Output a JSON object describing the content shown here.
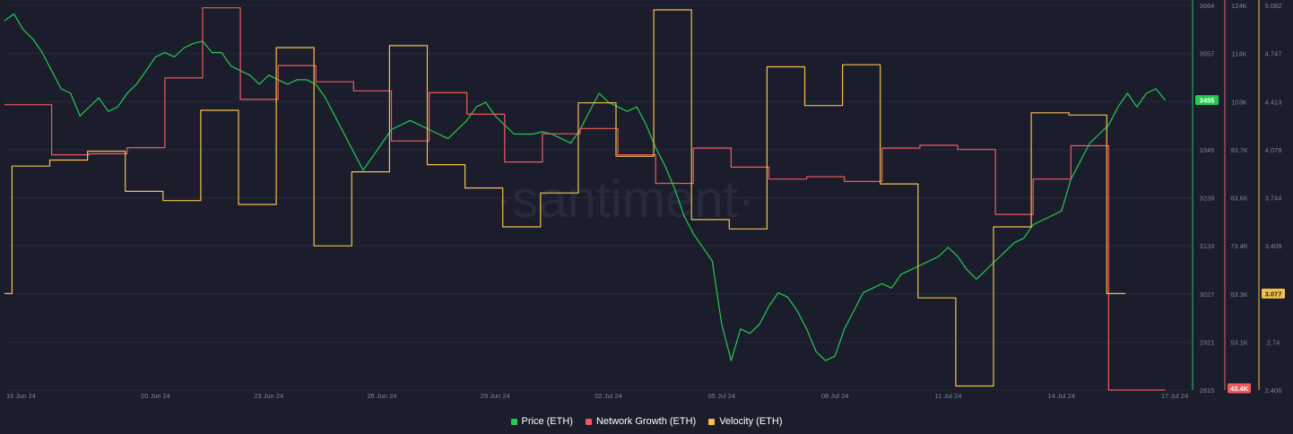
{
  "chart_data": {
    "type": "line",
    "title": "",
    "watermark": "·santiment·",
    "grid": true,
    "legend_position": "bottom-center",
    "x_ticks": [
      "16 Jun 24",
      "20 Jun 24",
      "23 Jun 24",
      "26 Jun 24",
      "29 Jun 24",
      "02 Jul 24",
      "05 Jul 24",
      "08 Jul 24",
      "11 Jul 24",
      "14 Jul 24",
      "17 Jul 24"
    ],
    "x_tick_days": [
      0,
      4,
      7,
      10,
      13,
      16,
      19,
      22,
      25,
      28,
      31
    ],
    "axes": {
      "price": {
        "ticks": [
          "3664",
          "3557",
          "3455",
          "3345",
          "3239",
          "3133",
          "3027",
          "2921",
          "2815"
        ],
        "min": 2815,
        "max": 3664,
        "current": "3455"
      },
      "network_growth": {
        "ticks": [
          "124K",
          "114K",
          "103K",
          "93.7K",
          "83.6K",
          "73.4K",
          "63.3K",
          "53.1K",
          "43.4K"
        ],
        "min": 43400,
        "max": 124000,
        "current": "43.4K"
      },
      "velocity": {
        "ticks": [
          "5.082",
          "4.747",
          "4.413",
          "4.078",
          "3.744",
          "3.409",
          "3.077",
          "2.74",
          "2.406"
        ],
        "min": 2.406,
        "max": 5.082,
        "current": "3.077"
      }
    },
    "series": [
      {
        "name": "Price (ETH)",
        "color": "#26c953",
        "axis": "price",
        "points": [
          [
            0,
            3630
          ],
          [
            0.25,
            3645
          ],
          [
            0.5,
            3610
          ],
          [
            0.75,
            3590
          ],
          [
            1,
            3560
          ],
          [
            1.25,
            3520
          ],
          [
            1.5,
            3480
          ],
          [
            1.75,
            3470
          ],
          [
            2,
            3420
          ],
          [
            2.25,
            3440
          ],
          [
            2.5,
            3460
          ],
          [
            2.75,
            3430
          ],
          [
            3,
            3440
          ],
          [
            3.25,
            3470
          ],
          [
            3.5,
            3490
          ],
          [
            3.75,
            3520
          ],
          [
            4,
            3550
          ],
          [
            4.25,
            3560
          ],
          [
            4.5,
            3550
          ],
          [
            4.75,
            3570
          ],
          [
            5,
            3580
          ],
          [
            5.25,
            3585
          ],
          [
            5.5,
            3560
          ],
          [
            5.75,
            3560
          ],
          [
            6,
            3530
          ],
          [
            6.25,
            3520
          ],
          [
            6.5,
            3510
          ],
          [
            6.75,
            3490
          ],
          [
            7,
            3510
          ],
          [
            7.25,
            3500
          ],
          [
            7.5,
            3490
          ],
          [
            7.75,
            3500
          ],
          [
            8,
            3500
          ],
          [
            8.25,
            3490
          ],
          [
            8.5,
            3460
          ],
          [
            8.75,
            3420
          ],
          [
            9,
            3380
          ],
          [
            9.25,
            3340
          ],
          [
            9.5,
            3300
          ],
          [
            9.75,
            3330
          ],
          [
            10,
            3360
          ],
          [
            10.25,
            3390
          ],
          [
            10.5,
            3400
          ],
          [
            10.75,
            3410
          ],
          [
            11,
            3400
          ],
          [
            11.25,
            3390
          ],
          [
            11.5,
            3380
          ],
          [
            11.75,
            3370
          ],
          [
            12,
            3390
          ],
          [
            12.25,
            3410
          ],
          [
            12.5,
            3440
          ],
          [
            12.75,
            3450
          ],
          [
            13,
            3420
          ],
          [
            13.25,
            3400
          ],
          [
            13.5,
            3380
          ],
          [
            13.75,
            3380
          ],
          [
            14,
            3380
          ],
          [
            14.25,
            3385
          ],
          [
            14.5,
            3380
          ],
          [
            14.75,
            3370
          ],
          [
            15,
            3360
          ],
          [
            15.25,
            3390
          ],
          [
            15.5,
            3430
          ],
          [
            15.75,
            3470
          ],
          [
            16,
            3450
          ],
          [
            16.25,
            3440
          ],
          [
            16.5,
            3430
          ],
          [
            16.75,
            3440
          ],
          [
            17,
            3400
          ],
          [
            17.25,
            3350
          ],
          [
            17.5,
            3310
          ],
          [
            17.75,
            3260
          ],
          [
            18,
            3200
          ],
          [
            18.25,
            3160
          ],
          [
            18.5,
            3130
          ],
          [
            18.75,
            3100
          ],
          [
            19,
            2960
          ],
          [
            19.25,
            2880
          ],
          [
            19.5,
            2950
          ],
          [
            19.75,
            2940
          ],
          [
            20,
            2960
          ],
          [
            20.25,
            3000
          ],
          [
            20.5,
            3030
          ],
          [
            20.75,
            3020
          ],
          [
            21,
            2990
          ],
          [
            21.25,
            2950
          ],
          [
            21.5,
            2900
          ],
          [
            21.75,
            2880
          ],
          [
            22,
            2890
          ],
          [
            22.25,
            2950
          ],
          [
            22.5,
            2990
          ],
          [
            22.75,
            3030
          ],
          [
            23,
            3040
          ],
          [
            23.25,
            3050
          ],
          [
            23.5,
            3040
          ],
          [
            23.75,
            3070
          ],
          [
            24,
            3080
          ],
          [
            24.25,
            3090
          ],
          [
            24.5,
            3100
          ],
          [
            24.75,
            3110
          ],
          [
            25,
            3130
          ],
          [
            25.25,
            3110
          ],
          [
            25.5,
            3080
          ],
          [
            25.75,
            3060
          ],
          [
            26,
            3080
          ],
          [
            26.25,
            3100
          ],
          [
            26.5,
            3120
          ],
          [
            26.75,
            3140
          ],
          [
            27,
            3150
          ],
          [
            27.25,
            3180
          ],
          [
            27.5,
            3190
          ],
          [
            27.75,
            3200
          ],
          [
            28,
            3210
          ],
          [
            28.25,
            3280
          ],
          [
            28.5,
            3320
          ],
          [
            28.75,
            3360
          ],
          [
            29,
            3380
          ],
          [
            29.25,
            3400
          ],
          [
            29.5,
            3440
          ],
          [
            29.75,
            3470
          ],
          [
            30,
            3440
          ],
          [
            30.25,
            3470
          ],
          [
            30.5,
            3480
          ],
          [
            30.75,
            3455
          ]
        ]
      },
      {
        "name": "Network Growth (ETH)",
        "color": "#ef5a5f",
        "axis": "network_growth",
        "points": [
          [
            0,
            103200
          ],
          [
            1.25,
            103200
          ],
          [
            1.25,
            92700
          ],
          [
            2.25,
            92700
          ],
          [
            2.25,
            92900
          ],
          [
            3.25,
            92900
          ],
          [
            3.25,
            94200
          ],
          [
            4.25,
            94200
          ],
          [
            4.25,
            108800
          ],
          [
            5.25,
            108800
          ],
          [
            5.25,
            123500
          ],
          [
            6.25,
            123500
          ],
          [
            6.25,
            104300
          ],
          [
            7.25,
            104300
          ],
          [
            7.25,
            111400
          ],
          [
            8.25,
            111400
          ],
          [
            8.25,
            108000
          ],
          [
            9.25,
            108000
          ],
          [
            9.25,
            106100
          ],
          [
            10.25,
            106100
          ],
          [
            10.25,
            95600
          ],
          [
            11.25,
            95600
          ],
          [
            11.25,
            105700
          ],
          [
            12.25,
            105700
          ],
          [
            12.25,
            101200
          ],
          [
            13.25,
            101200
          ],
          [
            13.25,
            91200
          ],
          [
            14.25,
            91200
          ],
          [
            14.25,
            97100
          ],
          [
            15.25,
            97100
          ],
          [
            15.25,
            98200
          ],
          [
            16.25,
            98200
          ],
          [
            16.25,
            92700
          ],
          [
            17.25,
            92700
          ],
          [
            17.25,
            86700
          ],
          [
            18.25,
            86700
          ],
          [
            18.25,
            94100
          ],
          [
            19.25,
            94100
          ],
          [
            19.25,
            90100
          ],
          [
            20.25,
            90100
          ],
          [
            20.25,
            87600
          ],
          [
            21.25,
            87600
          ],
          [
            21.25,
            88100
          ],
          [
            22.25,
            88100
          ],
          [
            22.25,
            87100
          ],
          [
            23.25,
            87100
          ],
          [
            23.25,
            94100
          ],
          [
            24.25,
            94100
          ],
          [
            24.25,
            94700
          ],
          [
            25.25,
            94700
          ],
          [
            25.25,
            93800
          ],
          [
            26.25,
            93800
          ],
          [
            26.25,
            80200
          ],
          [
            27.25,
            80200
          ],
          [
            27.25,
            87600
          ],
          [
            28.25,
            87600
          ],
          [
            28.25,
            94600
          ],
          [
            29.25,
            94600
          ],
          [
            29.25,
            43400
          ],
          [
            30.75,
            43400
          ]
        ]
      },
      {
        "name": "Velocity (ETH)",
        "color": "#f4c04c",
        "axis": "velocity",
        "points": [
          [
            0,
            3.077
          ],
          [
            0.2,
            3.077
          ],
          [
            0.2,
            3.964
          ],
          [
            1.2,
            3.964
          ],
          [
            1.2,
            4.006
          ],
          [
            2.2,
            4.006
          ],
          [
            2.2,
            4.068
          ],
          [
            3.2,
            4.068
          ],
          [
            3.2,
            3.788
          ],
          [
            4.2,
            3.788
          ],
          [
            4.2,
            3.724
          ],
          [
            5.2,
            3.724
          ],
          [
            5.2,
            4.352
          ],
          [
            6.2,
            4.352
          ],
          [
            6.2,
            3.697
          ],
          [
            7.2,
            3.697
          ],
          [
            7.2,
            4.788
          ],
          [
            8.2,
            4.788
          ],
          [
            8.2,
            3.409
          ],
          [
            9.2,
            3.409
          ],
          [
            9.2,
            3.924
          ],
          [
            10.2,
            3.924
          ],
          [
            10.2,
            4.802
          ],
          [
            11.2,
            4.802
          ],
          [
            11.2,
            3.974
          ],
          [
            12.2,
            3.974
          ],
          [
            12.2,
            3.812
          ],
          [
            13.2,
            3.812
          ],
          [
            13.2,
            3.541
          ],
          [
            14.2,
            3.541
          ],
          [
            14.2,
            3.777
          ],
          [
            15.2,
            3.777
          ],
          [
            15.2,
            4.404
          ],
          [
            16.2,
            4.404
          ],
          [
            16.2,
            4.032
          ],
          [
            17.2,
            4.032
          ],
          [
            17.2,
            5.051
          ],
          [
            18.2,
            5.051
          ],
          [
            18.2,
            3.592
          ],
          [
            19.2,
            3.592
          ],
          [
            19.2,
            3.527
          ],
          [
            20.2,
            3.527
          ],
          [
            20.2,
            4.655
          ],
          [
            21.2,
            4.655
          ],
          [
            21.2,
            4.385
          ],
          [
            22.2,
            4.385
          ],
          [
            22.2,
            4.669
          ],
          [
            23.2,
            4.669
          ],
          [
            23.2,
            3.84
          ],
          [
            24.2,
            3.84
          ],
          [
            24.2,
            3.047
          ],
          [
            25.2,
            3.047
          ],
          [
            25.2,
            2.434
          ],
          [
            26.2,
            2.434
          ],
          [
            26.2,
            3.541
          ],
          [
            27.2,
            3.541
          ],
          [
            27.2,
            4.335
          ],
          [
            28.2,
            4.335
          ],
          [
            28.2,
            4.319
          ],
          [
            29.2,
            4.319
          ],
          [
            29.2,
            3.077
          ],
          [
            29.7,
            3.077
          ]
        ]
      }
    ]
  },
  "legend": {
    "price_label": "Price (ETH)",
    "network_label": "Network Growth (ETH)",
    "velocity_label": "Velocity (ETH)"
  }
}
